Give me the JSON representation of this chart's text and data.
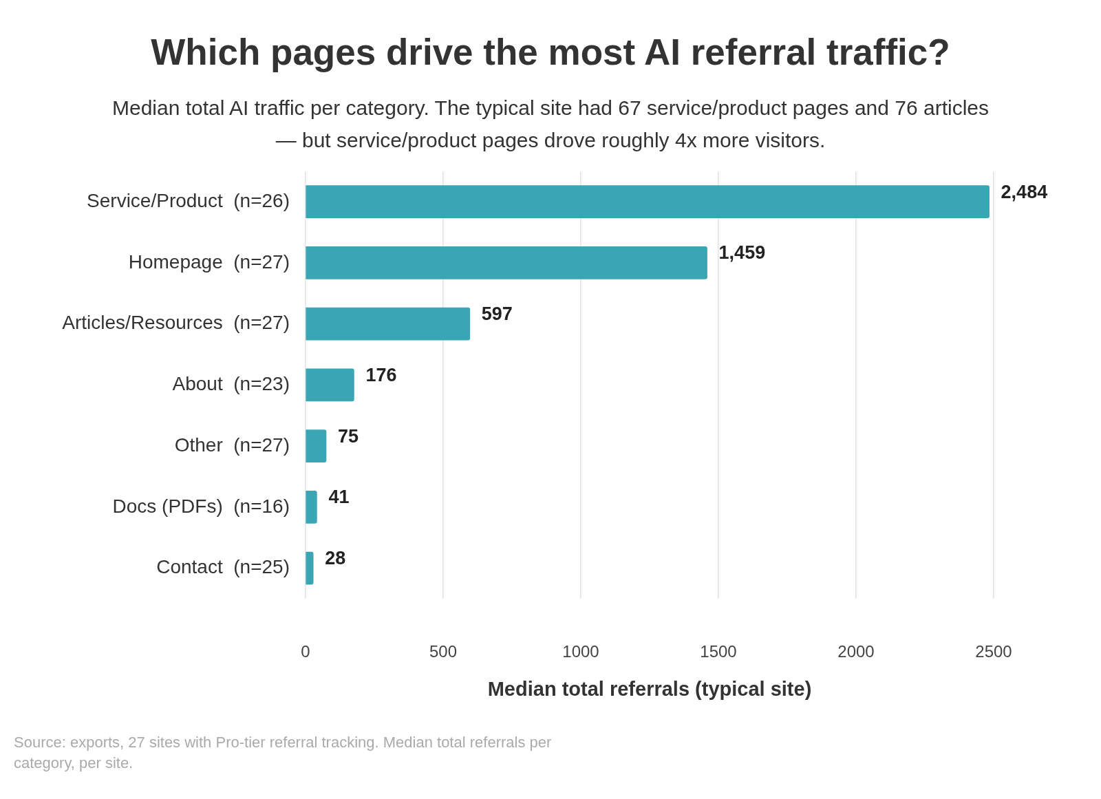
{
  "chart_data": {
    "type": "bar",
    "orientation": "horizontal",
    "title": "Which pages drive the most AI referral traffic?",
    "subtitle": "Median total AI traffic per category. The typical site had 67 service/product pages and 76 articles — but service/product pages drove roughly 4x more visitors.",
    "xlabel": "Median total referrals (typical site)",
    "categories": [
      "Service/Product  (n=26)",
      "Homepage  (n=27)",
      "Articles/Resources  (n=27)",
      "About  (n=23)",
      "Other  (n=27)",
      "Docs (PDFs)  (n=16)",
      "Contact  (n=25)"
    ],
    "values": [
      2484,
      1459,
      597,
      176,
      75,
      41,
      28
    ],
    "value_labels": [
      "2,484",
      "1,459",
      "597",
      "176",
      "75",
      "41",
      "28"
    ],
    "color": "#3aa5b3",
    "xlim": [
      0,
      2500
    ],
    "xticks": [
      0,
      500,
      1000,
      1500,
      2000,
      2500
    ],
    "grid": "x",
    "annotations": [
      "Source: exports, 27 sites with Pro-tier referral tracking. Median total referrals per category, per site."
    ]
  }
}
